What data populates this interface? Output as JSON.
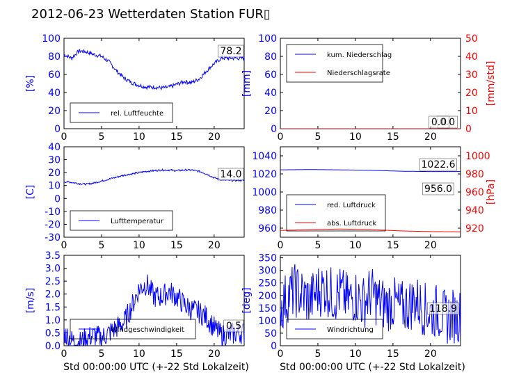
{
  "title": "2012-06-23 Wetterdaten Station FUR▯",
  "colors": {
    "primary": "#0000ff",
    "secondary": "#ff0000",
    "text": "#000000"
  },
  "chart_data": [
    {
      "type": "line",
      "panel": "humidity",
      "ylabel": "[%]",
      "xlabel": "",
      "xlim": [
        0,
        24
      ],
      "ylim": [
        0,
        100
      ],
      "xticks": [
        0,
        5,
        10,
        15,
        20
      ],
      "yticks": [
        0,
        20,
        40,
        60,
        80,
        100
      ],
      "value_label": "78.2",
      "legend_position": "lower-left",
      "series": [
        {
          "name": "rel. Luftfeuchte",
          "color": "#0000ff",
          "x": [
            0,
            1,
            2,
            3,
            4,
            5,
            6,
            7,
            8,
            9,
            10,
            11,
            12,
            13,
            14,
            15,
            16,
            17,
            18,
            19,
            20,
            21,
            22,
            23,
            24
          ],
          "y": [
            82,
            78,
            86,
            85,
            82,
            80,
            74,
            64,
            56,
            51,
            48,
            46,
            46,
            45,
            46,
            49,
            52,
            51,
            55,
            64,
            72,
            78,
            78,
            78,
            78
          ]
        }
      ]
    },
    {
      "type": "line",
      "panel": "precipitation",
      "ylabel": "[mm]",
      "ylabel_right": "[mm/std]",
      "xlabel": "",
      "xlim": [
        0,
        24
      ],
      "ylim": [
        0,
        100
      ],
      "ylim_right": [
        0,
        50
      ],
      "xticks": [
        0,
        5,
        10,
        15,
        20
      ],
      "yticks": [
        0,
        20,
        40,
        60,
        80,
        100
      ],
      "yticks_right": [
        0,
        10,
        20,
        30,
        40,
        50
      ],
      "value_label": "0.0",
      "value_label_2": "0.0",
      "legend_position": "upper-left",
      "series": [
        {
          "name": "kum. Niederschlag",
          "color": "#0000ff",
          "x": [
            0,
            24
          ],
          "y": [
            0,
            0
          ]
        },
        {
          "name": "Niederschlagsrate",
          "color": "#ff0000",
          "x": [
            0,
            24
          ],
          "y": [
            0,
            0
          ]
        }
      ]
    },
    {
      "type": "line",
      "panel": "temperature",
      "ylabel": "[C]",
      "xlabel": "",
      "xlim": [
        0,
        24
      ],
      "ylim": [
        -30,
        40
      ],
      "xticks": [
        0,
        5,
        10,
        15,
        20
      ],
      "yticks": [
        -30,
        -20,
        -10,
        0,
        10,
        20,
        30,
        40
      ],
      "value_label": "14.0",
      "legend_position": "lower-left",
      "series": [
        {
          "name": "Lufttemperatur",
          "color": "#0000ff",
          "x": [
            0,
            1,
            2,
            3,
            4,
            5,
            6,
            7,
            8,
            9,
            10,
            11,
            12,
            13,
            14,
            15,
            16,
            17,
            18,
            19,
            20,
            21,
            22,
            23,
            24
          ],
          "y": [
            13,
            12.5,
            11.5,
            11,
            12,
            13.5,
            15,
            16.5,
            18,
            19,
            20,
            21,
            21.5,
            22,
            22,
            21.5,
            22,
            22,
            21,
            19,
            16,
            14.5,
            14,
            14,
            14
          ]
        }
      ]
    },
    {
      "type": "line",
      "panel": "pressure",
      "ylabel": "",
      "ylabel_right": "[hPa]",
      "xlabel": "",
      "xlim": [
        0,
        24
      ],
      "ylim": [
        950,
        1050
      ],
      "ylim_right": [
        910,
        1010
      ],
      "xticks": [
        0,
        5,
        10,
        15,
        20
      ],
      "yticks": [
        960,
        980,
        1000,
        1020,
        1040
      ],
      "yticks_right": [
        920,
        940,
        960,
        980,
        1000
      ],
      "value_label": "1022.6",
      "value_label_2": "956.0",
      "legend_position": "lower-left",
      "series": [
        {
          "name": "red. Luftdruck",
          "color": "#0000ff",
          "x": [
            0,
            4,
            8,
            12,
            16,
            20,
            24
          ],
          "y": [
            1024.5,
            1024.8,
            1024.5,
            1024,
            1023,
            1022.6,
            1022.6
          ]
        },
        {
          "name": "abs. Luftdruck",
          "color": "#ff0000",
          "x": [
            0,
            4,
            8,
            12,
            16,
            20,
            24
          ],
          "y": [
            957.5,
            958.5,
            959,
            958.5,
            957,
            956.2,
            956.0
          ]
        }
      ]
    },
    {
      "type": "line",
      "panel": "wind-speed",
      "ylabel": "[m/s]",
      "xlabel": "Std 00:00:00 UTC (+-22 Std Lokalzeit)",
      "xlim": [
        0,
        24
      ],
      "ylim": [
        0,
        3.5
      ],
      "xticks": [
        0,
        5,
        10,
        15,
        20
      ],
      "yticks": [
        0.0,
        0.5,
        1.0,
        1.5,
        2.0,
        2.5,
        3.0,
        3.5
      ],
      "value_label": "0.5",
      "legend_position": "lower-left",
      "series": [
        {
          "name": "Windgeschwindigkeit",
          "color": "#0000ff",
          "x": [
            0,
            1,
            2,
            3,
            4,
            5,
            6,
            7,
            8,
            9,
            10,
            11,
            12,
            13,
            14,
            15,
            16,
            17,
            18,
            19,
            20,
            21,
            22,
            23,
            24
          ],
          "y": [
            0.5,
            0.2,
            0.1,
            0.3,
            0.4,
            0.3,
            0.5,
            0.7,
            0.9,
            1.5,
            2.2,
            2.4,
            1.9,
            1.9,
            2.1,
            1.9,
            1.6,
            1.4,
            1.3,
            1.1,
            0.7,
            0.4,
            0.4,
            0.5,
            0.5
          ]
        }
      ]
    },
    {
      "type": "line",
      "panel": "wind-direction",
      "ylabel": "[deg]",
      "xlabel": "Std 00:00:00 UTC (+-22 Std Lokalzeit)",
      "xlim": [
        0,
        24
      ],
      "ylim": [
        0,
        360
      ],
      "xticks": [
        0,
        5,
        10,
        15,
        20
      ],
      "yticks": [
        0,
        50,
        100,
        150,
        200,
        250,
        300,
        350
      ],
      "value_label": "118.9",
      "legend_position": "lower-left",
      "series": [
        {
          "name": "Windrichtung",
          "color": "#0000ff",
          "x": [
            0,
            1,
            2,
            3,
            4,
            5,
            6,
            7,
            8,
            9,
            10,
            11,
            12,
            13,
            14,
            15,
            16,
            17,
            18,
            19,
            20,
            21,
            22,
            23,
            24
          ],
          "y": [
            150,
            200,
            220,
            200,
            180,
            220,
            230,
            200,
            210,
            180,
            200,
            170,
            210,
            180,
            160,
            170,
            150,
            160,
            180,
            150,
            130,
            140,
            110,
            119,
            119
          ]
        }
      ]
    }
  ]
}
